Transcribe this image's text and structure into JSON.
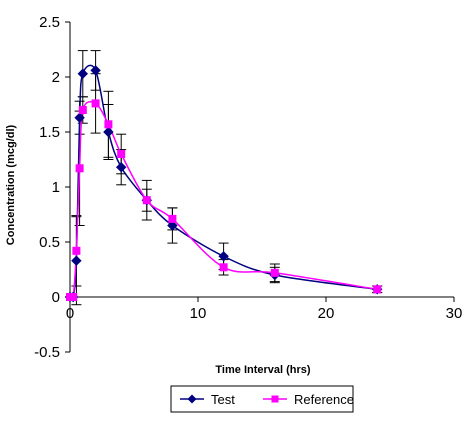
{
  "chart_data": {
    "type": "line",
    "title": "",
    "xlabel": "Time Interval (hrs)",
    "ylabel": "Concentration (mcg/dl)",
    "xlim": [
      0,
      30
    ],
    "ylim": [
      -0.5,
      2.5
    ],
    "x_ticks": [
      0,
      10,
      20,
      30
    ],
    "y_ticks": [
      -0.5,
      0,
      0.5,
      1,
      1.5,
      2,
      2.5
    ],
    "x_tick_labels": [
      "0",
      "10",
      "20",
      "30"
    ],
    "y_tick_labels": [
      "-0.5",
      "0",
      "0.5",
      "1",
      "1.5",
      "2",
      "2.5"
    ],
    "grid": false,
    "legend_position": "bottom",
    "series": [
      {
        "name": "Test",
        "color": "#000080",
        "marker": "diamond",
        "x": [
          0,
          0.25,
          0.5,
          0.75,
          1,
          2,
          3,
          4,
          6,
          8,
          12,
          16,
          24
        ],
        "y": [
          0,
          0,
          0.33,
          1.63,
          2.03,
          2.06,
          1.5,
          1.18,
          0.88,
          0.65,
          0.37,
          0.2,
          0.07
        ],
        "error": [
          0,
          0,
          0.4,
          0.15,
          0.21,
          0.18,
          0.25,
          0.16,
          0.18,
          0.16,
          0.12,
          0.07,
          0.03
        ]
      },
      {
        "name": "Reference",
        "color": "#FF00FF",
        "marker": "square",
        "x": [
          0,
          0.25,
          0.5,
          0.75,
          1,
          2,
          3,
          4,
          6,
          8,
          12,
          16,
          24
        ],
        "y": [
          0,
          0,
          0.42,
          1.17,
          1.7,
          1.76,
          1.57,
          1.3,
          0.88,
          0.71,
          0.27,
          0.22,
          0.07
        ],
        "error": [
          0,
          0,
          0.32,
          0.52,
          0.12,
          0.27,
          0.3,
          0.18,
          0.1,
          0.1,
          0.07,
          0.08,
          0.03
        ]
      }
    ]
  }
}
